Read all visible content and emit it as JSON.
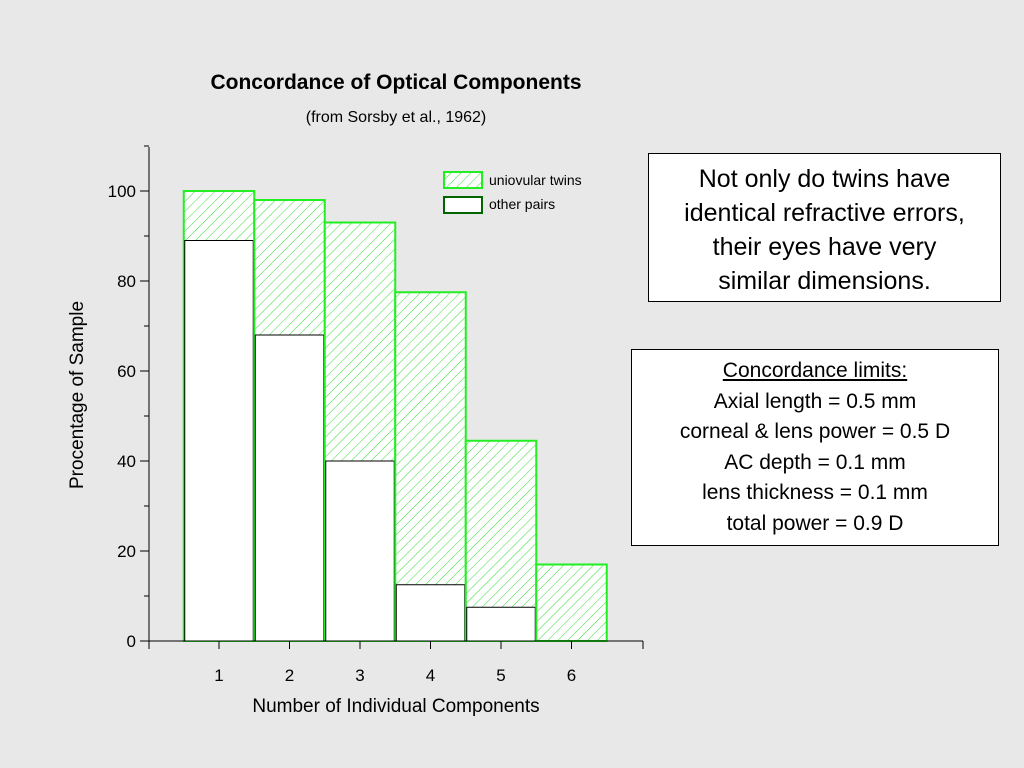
{
  "chart_data": {
    "type": "bar",
    "title": "Concordance of Optical Components",
    "subtitle": "(from Sorsby et al., 1962)",
    "xlabel": "Number of Individual Components",
    "ylabel": "Procentage of Sample",
    "categories": [
      "1",
      "2",
      "3",
      "4",
      "5",
      "6"
    ],
    "ylim": [
      0,
      110
    ],
    "yticks": [
      0,
      20,
      40,
      60,
      80,
      100
    ],
    "grid": false,
    "legend_position": "top-right",
    "series": [
      {
        "name": "uniovular twins",
        "values": [
          100,
          98,
          93,
          77.5,
          44.5,
          17
        ],
        "color": "#22ee22",
        "pattern": "hatched"
      },
      {
        "name": "other pairs",
        "values": [
          89,
          68,
          40,
          12.5,
          7.5,
          0
        ],
        "color": "#006600",
        "pattern": "solid-white"
      }
    ]
  },
  "note": {
    "lines": [
      "Not only do twins have",
      "identical refractive errors,",
      "their eyes have very",
      "similar dimensions."
    ]
  },
  "limits": {
    "title": "Concordance limits:",
    "lines": [
      "Axial length = 0.5 mm",
      "corneal & lens power = 0.5 D",
      "AC depth = 0.1 mm",
      "lens thickness = 0.1 mm",
      "total power = 0.9 D"
    ]
  }
}
